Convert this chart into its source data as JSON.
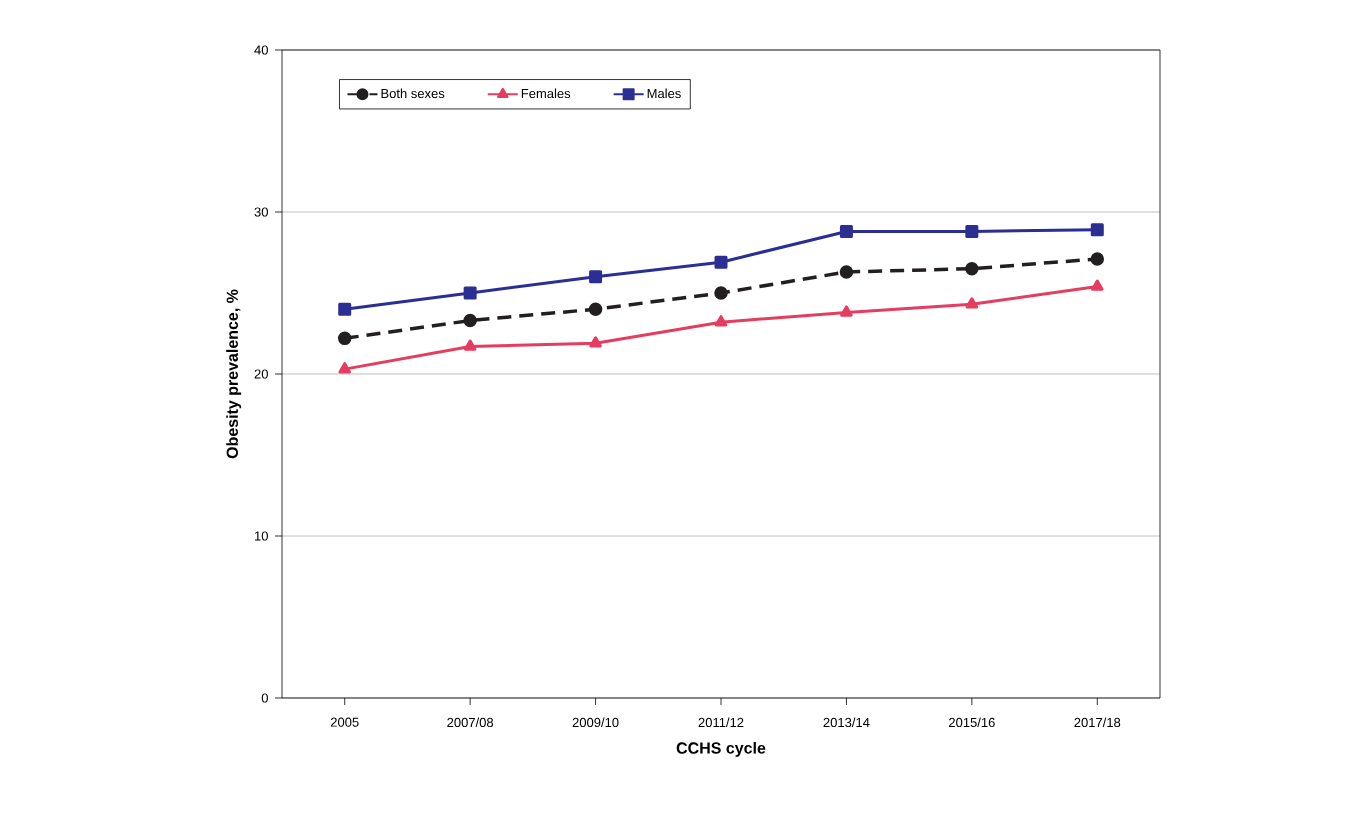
{
  "chart_data": {
    "type": "line",
    "xlabel": "CCHS cycle",
    "ylabel": "Obesity prevalence, %",
    "categories": [
      "2005",
      "2007/08",
      "2009/10",
      "2011/12",
      "2013/14",
      "2015/16",
      "2017/18"
    ],
    "series": [
      {
        "name": "Both sexes",
        "color": "#231f20",
        "marker": "circle",
        "line_style": "dashed",
        "values": [
          22.2,
          23.3,
          24.0,
          25.0,
          26.3,
          26.5,
          27.1
        ]
      },
      {
        "name": "Females",
        "color": "#e43d5f",
        "marker": "triangle",
        "line_style": "solid",
        "values": [
          20.3,
          21.7,
          21.9,
          23.2,
          23.8,
          24.3,
          25.4
        ]
      },
      {
        "name": "Males",
        "color": "#2b2e92",
        "marker": "square",
        "line_style": "solid",
        "values": [
          24.0,
          25.0,
          26.0,
          26.9,
          28.8,
          28.8,
          28.9
        ]
      }
    ],
    "ylim": [
      0,
      40
    ],
    "yticks": [
      0,
      10,
      20,
      30,
      40
    ],
    "grid": "y",
    "legend": "top left"
  }
}
